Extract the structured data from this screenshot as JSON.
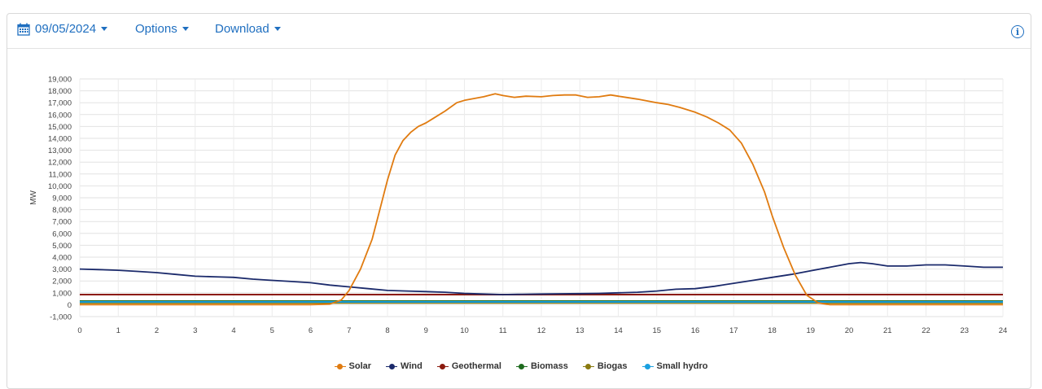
{
  "toolbar": {
    "date_label": "09/05/2024",
    "options_label": "Options",
    "download_label": "Download",
    "info_label": "i"
  },
  "colors": {
    "accent": "#1f6fc0",
    "solar": "#e07b10",
    "wind": "#1b2a6b",
    "geothermal": "#8b1a0e",
    "biomass": "#1e6b1e",
    "biogas": "#8a7a10",
    "small_hydro": "#1aa0e0"
  },
  "chart_data": {
    "type": "line",
    "title": "",
    "xlabel": "",
    "ylabel": "MW",
    "xlim": [
      0,
      24
    ],
    "ylim": [
      -1000,
      19000
    ],
    "x_ticks": [
      0,
      1,
      2,
      3,
      4,
      5,
      6,
      7,
      8,
      9,
      10,
      11,
      12,
      13,
      14,
      15,
      16,
      17,
      18,
      19,
      20,
      21,
      22,
      23,
      24
    ],
    "y_ticks": [
      -1000,
      0,
      1000,
      2000,
      3000,
      4000,
      5000,
      6000,
      7000,
      8000,
      9000,
      10000,
      11000,
      12000,
      13000,
      14000,
      15000,
      16000,
      17000,
      18000,
      19000
    ],
    "y_tick_labels": [
      "-1,000",
      "0",
      "1,000",
      "2,000",
      "3,000",
      "4,000",
      "5,000",
      "6,000",
      "7,000",
      "8,000",
      "9,000",
      "10,000",
      "11,000",
      "12,000",
      "13,000",
      "14,000",
      "15,000",
      "16,000",
      "17,000",
      "18,000",
      "19,000"
    ],
    "grid": true,
    "legend_position": "bottom",
    "series": [
      {
        "name": "Solar",
        "color": "#e07b10",
        "points": [
          [
            0,
            0
          ],
          [
            6,
            0
          ],
          [
            6.5,
            50
          ],
          [
            6.8,
            400
          ],
          [
            7,
            1200
          ],
          [
            7.3,
            3000
          ],
          [
            7.6,
            5500
          ],
          [
            7.8,
            8000
          ],
          [
            8,
            10500
          ],
          [
            8.2,
            12600
          ],
          [
            8.4,
            13800
          ],
          [
            8.6,
            14500
          ],
          [
            8.8,
            15000
          ],
          [
            9,
            15300
          ],
          [
            9.2,
            15700
          ],
          [
            9.5,
            16300
          ],
          [
            9.8,
            17000
          ],
          [
            10,
            17200
          ],
          [
            10.5,
            17500
          ],
          [
            10.8,
            17750
          ],
          [
            11,
            17600
          ],
          [
            11.3,
            17450
          ],
          [
            11.6,
            17550
          ],
          [
            12,
            17500
          ],
          [
            12.3,
            17600
          ],
          [
            12.6,
            17650
          ],
          [
            12.9,
            17650
          ],
          [
            13.2,
            17450
          ],
          [
            13.5,
            17500
          ],
          [
            13.8,
            17650
          ],
          [
            14,
            17550
          ],
          [
            14.5,
            17300
          ],
          [
            15,
            17000
          ],
          [
            15.3,
            16850
          ],
          [
            15.6,
            16600
          ],
          [
            16,
            16200
          ],
          [
            16.3,
            15800
          ],
          [
            16.6,
            15300
          ],
          [
            16.9,
            14700
          ],
          [
            17.2,
            13600
          ],
          [
            17.5,
            11800
          ],
          [
            17.8,
            9500
          ],
          [
            18,
            7500
          ],
          [
            18.3,
            4800
          ],
          [
            18.6,
            2500
          ],
          [
            18.9,
            800
          ],
          [
            19.2,
            150
          ],
          [
            19.5,
            0
          ],
          [
            24,
            0
          ]
        ]
      },
      {
        "name": "Wind",
        "color": "#1b2a6b",
        "points": [
          [
            0,
            3000
          ],
          [
            0.5,
            2950
          ],
          [
            1,
            2900
          ],
          [
            1.5,
            2800
          ],
          [
            2,
            2700
          ],
          [
            2.5,
            2550
          ],
          [
            3,
            2400
          ],
          [
            3.5,
            2350
          ],
          [
            4,
            2300
          ],
          [
            4.5,
            2150
          ],
          [
            5,
            2050
          ],
          [
            5.5,
            1950
          ],
          [
            6,
            1850
          ],
          [
            6.5,
            1650
          ],
          [
            7,
            1500
          ],
          [
            7.5,
            1350
          ],
          [
            8,
            1200
          ],
          [
            8.5,
            1150
          ],
          [
            9,
            1100
          ],
          [
            9.5,
            1050
          ],
          [
            10,
            950
          ],
          [
            10.5,
            900
          ],
          [
            11,
            850
          ],
          [
            11.5,
            880
          ],
          [
            12,
            900
          ],
          [
            12.5,
            920
          ],
          [
            13,
            930
          ],
          [
            13.5,
            950
          ],
          [
            14,
            1000
          ],
          [
            14.5,
            1050
          ],
          [
            15,
            1150
          ],
          [
            15.5,
            1300
          ],
          [
            16,
            1350
          ],
          [
            16.5,
            1550
          ],
          [
            17,
            1800
          ],
          [
            17.5,
            2050
          ],
          [
            18,
            2300
          ],
          [
            18.5,
            2550
          ],
          [
            19,
            2850
          ],
          [
            19.5,
            3150
          ],
          [
            20,
            3450
          ],
          [
            20.3,
            3550
          ],
          [
            20.6,
            3450
          ],
          [
            21,
            3250
          ],
          [
            21.5,
            3250
          ],
          [
            22,
            3350
          ],
          [
            22.5,
            3350
          ],
          [
            23,
            3250
          ],
          [
            23.5,
            3150
          ],
          [
            24,
            3150
          ]
        ]
      },
      {
        "name": "Geothermal",
        "color": "#8b1a0e",
        "points": [
          [
            0,
            850
          ],
          [
            24,
            850
          ]
        ]
      },
      {
        "name": "Biomass",
        "color": "#1e6b1e",
        "points": [
          [
            0,
            300
          ],
          [
            24,
            300
          ]
        ]
      },
      {
        "name": "Biogas",
        "color": "#8a7a10",
        "points": [
          [
            0,
            150
          ],
          [
            24,
            150
          ]
        ]
      },
      {
        "name": "Small hydro",
        "color": "#1aa0e0",
        "points": [
          [
            0,
            230
          ],
          [
            24,
            230
          ]
        ]
      }
    ]
  }
}
